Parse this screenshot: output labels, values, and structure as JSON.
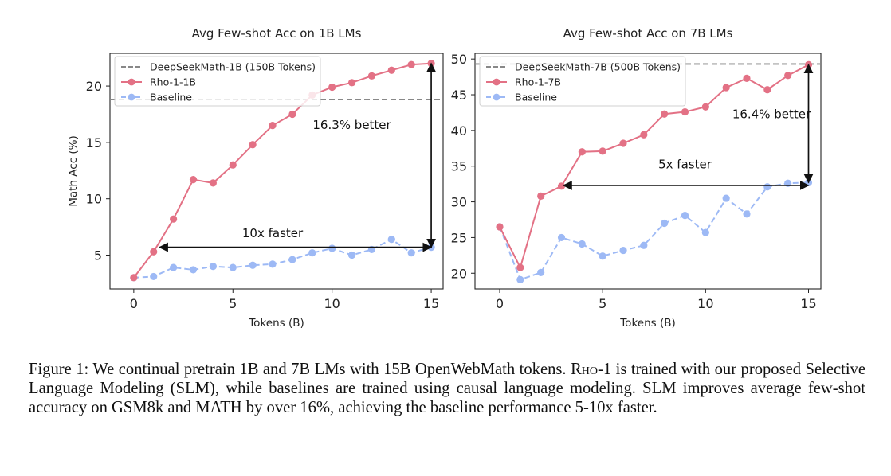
{
  "chart_data": [
    {
      "type": "line",
      "title": "Avg Few-shot Acc on 1B LMs",
      "xlabel": "Tokens (B)",
      "ylabel": "Math Acc (%)",
      "xlim": [
        -1.2,
        15.6
      ],
      "ylim": [
        2.0,
        22.9
      ],
      "xticks": [
        0,
        5,
        10,
        15
      ],
      "yticks": [
        5,
        10,
        15,
        20
      ],
      "series": [
        {
          "name": "Rho-1-1B",
          "color": "#e37185",
          "style": "solid",
          "x": [
            0,
            1,
            2,
            3,
            4,
            5,
            6,
            7,
            8,
            9,
            10,
            11,
            12,
            13,
            14,
            15
          ],
          "y": [
            3.0,
            5.3,
            8.2,
            11.7,
            11.4,
            13.0,
            14.8,
            16.5,
            17.5,
            19.2,
            19.9,
            20.3,
            20.9,
            21.4,
            21.9,
            22.0
          ]
        },
        {
          "name": "Baseline",
          "color": "#9db9f5",
          "style": "dashed",
          "x": [
            0,
            1,
            2,
            3,
            4,
            5,
            6,
            7,
            8,
            9,
            10,
            11,
            12,
            13,
            14,
            15
          ],
          "y": [
            3.0,
            3.1,
            3.9,
            3.7,
            4.0,
            3.9,
            4.1,
            4.2,
            4.6,
            5.2,
            5.6,
            5.0,
            5.5,
            6.4,
            5.2,
            5.7
          ]
        }
      ],
      "reference_line": {
        "name": "DeepSeekMath-1B (150B Tokens)",
        "y": 18.8,
        "color": "#888888"
      },
      "annotations": [
        {
          "label": "16.3% better",
          "kind": "vertical-arrow",
          "x": 15,
          "y_from": 5.7,
          "y_to": 22.0,
          "label_x": 11.0,
          "label_y": 16.2
        },
        {
          "label": "10x faster",
          "kind": "horizontal-arrow",
          "y": 5.7,
          "x_from": 1.3,
          "x_to": 15,
          "label_x": 7.0,
          "label_y": 6.6
        }
      ],
      "legend": "top-left"
    },
    {
      "type": "line",
      "title": "Avg Few-shot Acc on 7B LMs",
      "xlabel": "Tokens (B)",
      "ylabel": "",
      "xlim": [
        -1.2,
        15.6
      ],
      "ylim": [
        17.8,
        50.8
      ],
      "xticks": [
        0,
        5,
        10,
        15
      ],
      "yticks": [
        20,
        25,
        30,
        35,
        40,
        45,
        50
      ],
      "series": [
        {
          "name": "Rho-1-7B",
          "color": "#e37185",
          "style": "solid",
          "x": [
            0,
            1,
            2,
            3,
            4,
            5,
            6,
            7,
            8,
            9,
            10,
            11,
            12,
            13,
            14,
            15
          ],
          "y": [
            26.5,
            20.8,
            30.8,
            32.2,
            37.0,
            37.1,
            38.2,
            39.4,
            42.3,
            42.6,
            43.3,
            46.0,
            47.3,
            45.7,
            47.7,
            49.2
          ]
        },
        {
          "name": "Baseline",
          "color": "#9db9f5",
          "style": "dashed",
          "x": [
            0,
            1,
            2,
            3,
            4,
            5,
            6,
            7,
            8,
            9,
            10,
            11,
            12,
            13,
            14,
            15
          ],
          "y": [
            26.5,
            19.1,
            20.1,
            25.0,
            24.1,
            22.4,
            23.2,
            23.9,
            27.0,
            28.1,
            25.7,
            30.5,
            28.3,
            32.1,
            32.6,
            32.7
          ]
        }
      ],
      "reference_line": {
        "name": "DeepSeekMath-7B (500B Tokens)",
        "y": 49.3,
        "color": "#888888"
      },
      "annotations": [
        {
          "label": "16.4% better",
          "kind": "vertical-arrow",
          "x": 15,
          "y_from": 32.7,
          "y_to": 49.2,
          "label_x": 13.2,
          "label_y": 41.7
        },
        {
          "label": "5x faster",
          "kind": "horizontal-arrow",
          "y": 32.3,
          "x_from": 3.1,
          "x_to": 15,
          "label_x": 9.0,
          "label_y": 34.7
        }
      ],
      "legend": "top-left"
    }
  ],
  "caption": {
    "label": "Figure 1:",
    "text_1": "We continual pretrain 1B and 7B LMs with 15B OpenWebMath tokens.",
    "model_name": "Rho-1",
    "text_2": "is trained with our proposed Selective Language Modeling (SLM), while baselines are trained using causal language modeling. SLM improves average few-shot accuracy on GSM8k and MATH by over 16%, achieving the baseline performance 5-10x faster."
  }
}
